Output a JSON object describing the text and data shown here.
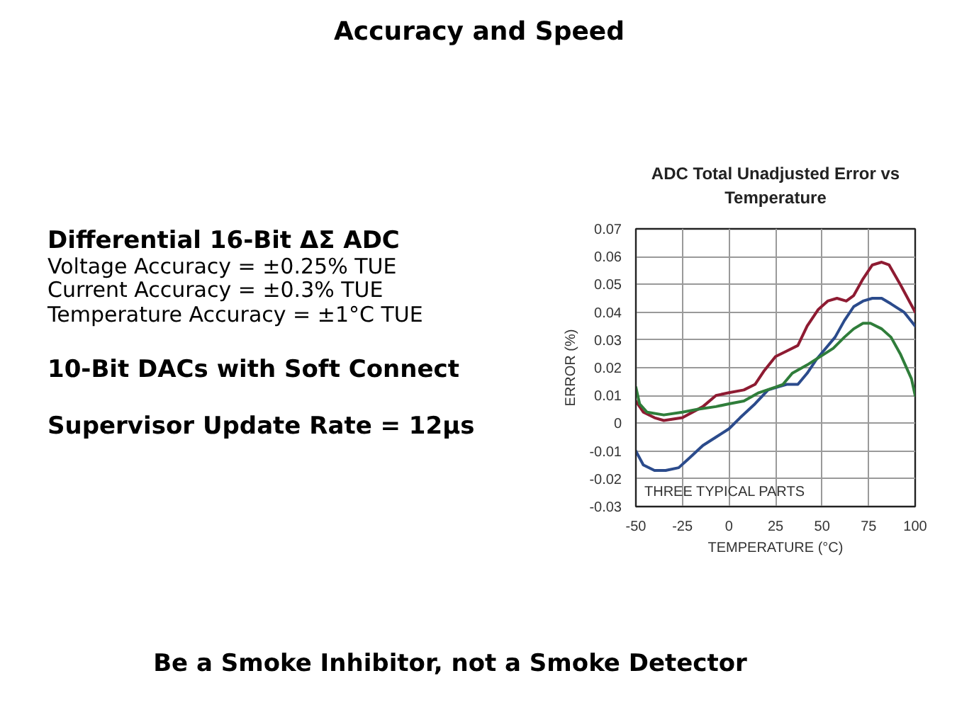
{
  "chart_data": {
    "type": "line",
    "title": "Accuracy and Speed",
    "subtitle": "ADC Total Unadjusted Error vs Temperature",
    "xlabel": "TEMPERATURE (°C)",
    "ylabel": "ERROR (%)",
    "xlim": [
      -50,
      100
    ],
    "xticks": [
      -50,
      -25,
      0,
      25,
      50,
      75,
      100
    ],
    "ylim": [
      -0.03,
      0.07
    ],
    "yticks": [
      -0.03,
      -0.02,
      -0.01,
      0,
      0.01,
      0.02,
      0.03,
      0.04,
      0.05,
      0.06,
      0.07
    ],
    "grid": true,
    "series": [
      {
        "color": "#8e1b32",
        "x": [
          -50,
          -46,
          -40,
          -35,
          -25,
          -14,
          -7,
          0,
          8,
          14,
          19,
          25,
          31,
          37,
          42,
          48,
          53,
          58,
          63,
          67,
          72,
          77,
          82,
          86,
          92,
          100
        ],
        "values": [
          0.008,
          0.004,
          0.002,
          0.001,
          0.002,
          0.006,
          0.01,
          0.011,
          0.012,
          0.014,
          0.019,
          0.024,
          0.026,
          0.028,
          0.035,
          0.041,
          0.044,
          0.045,
          0.044,
          0.046,
          0.052,
          0.057,
          0.058,
          0.057,
          0.05,
          0.04
        ]
      },
      {
        "color": "#2b4b8c",
        "x": [
          -50,
          -46,
          -40,
          -34,
          -27,
          -22,
          -14,
          -7,
          0,
          6,
          14,
          21,
          26,
          31,
          37,
          42,
          47,
          52,
          57,
          62,
          67,
          72,
          77,
          82,
          87,
          94,
          100
        ],
        "values": [
          -0.01,
          -0.015,
          -0.017,
          -0.017,
          -0.016,
          -0.013,
          -0.008,
          -0.005,
          -0.002,
          0.002,
          0.007,
          0.012,
          0.013,
          0.014,
          0.014,
          0.018,
          0.023,
          0.027,
          0.031,
          0.037,
          0.042,
          0.044,
          0.045,
          0.045,
          0.043,
          0.04,
          0.035
        ]
      },
      {
        "color": "#2f7d3a",
        "x": [
          -50,
          -48,
          -44,
          -35,
          -25,
          -17,
          -7,
          0,
          8,
          16,
          25,
          29,
          34,
          42,
          49,
          56,
          62,
          67,
          72,
          76,
          82,
          87,
          92,
          98,
          100
        ],
        "values": [
          0.013,
          0.007,
          0.004,
          0.003,
          0.004,
          0.005,
          0.006,
          0.007,
          0.008,
          0.011,
          0.013,
          0.014,
          0.018,
          0.021,
          0.024,
          0.027,
          0.031,
          0.034,
          0.036,
          0.036,
          0.034,
          0.031,
          0.025,
          0.016,
          0.01
        ]
      }
    ],
    "annotations": [
      "Differential  16-Bit ΔΣ ADC",
      "Voltage Accuracy = ±0.25% TUE",
      "Current Accuracy = ±0.3% TUE",
      "Temperature Accuracy = ±1°C TUE",
      "10-Bit DACs with Soft Connect",
      "Supervisor Update Rate = 12µs",
      "THREE TYPICAL PARTS",
      "Be a Smoke Inhibitor, not a Smoke Detector"
    ]
  }
}
